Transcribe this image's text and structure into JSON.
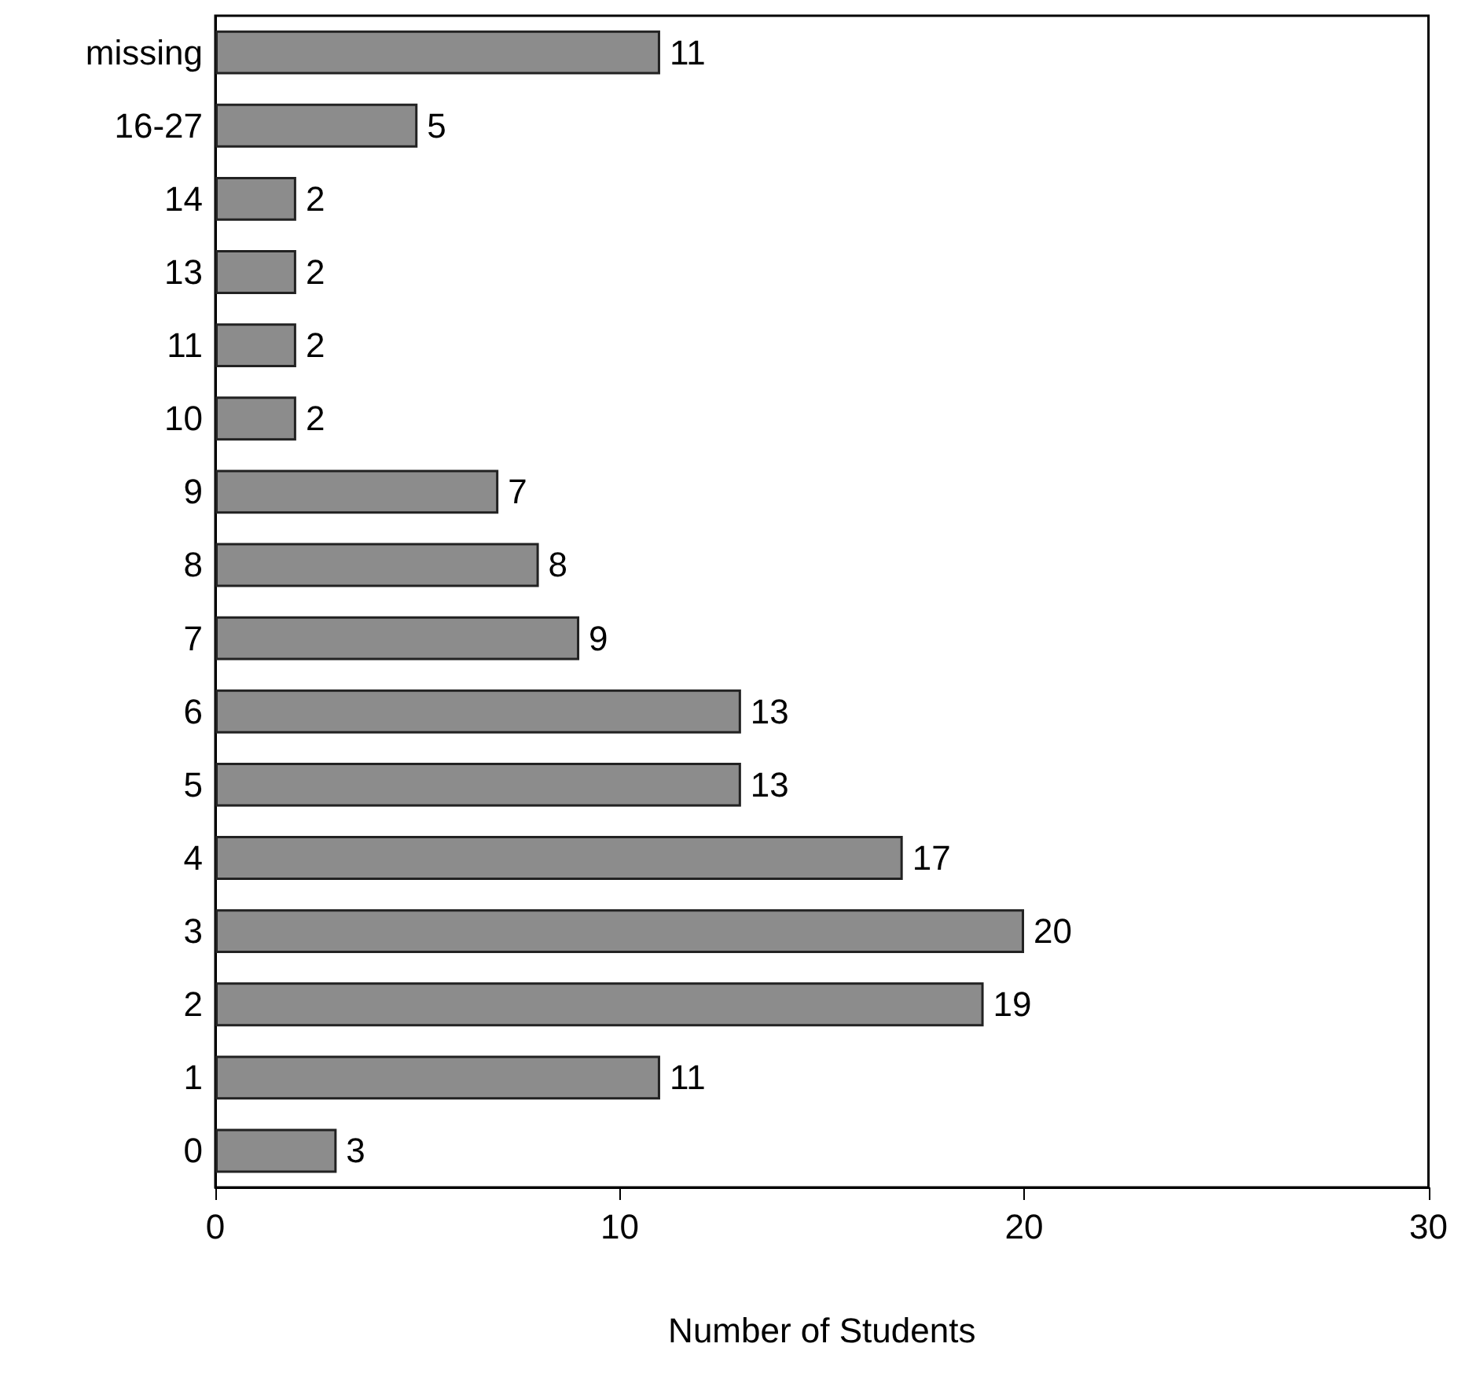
{
  "chart_data": {
    "type": "bar",
    "orientation": "horizontal",
    "xlabel": "Number of Students",
    "categories": [
      "missing",
      "16-27",
      "14",
      "13",
      "11",
      "10",
      "9",
      "8",
      "7",
      "6",
      "5",
      "4",
      "3",
      "2",
      "1",
      "0"
    ],
    "values": [
      11,
      5,
      2,
      2,
      2,
      2,
      7,
      8,
      9,
      13,
      13,
      17,
      20,
      19,
      11,
      3
    ],
    "color": "#8c8c8c",
    "xlim": [
      0,
      30
    ],
    "xticks": [
      0,
      10,
      20,
      30
    ],
    "grid": false,
    "data_labels": true
  }
}
